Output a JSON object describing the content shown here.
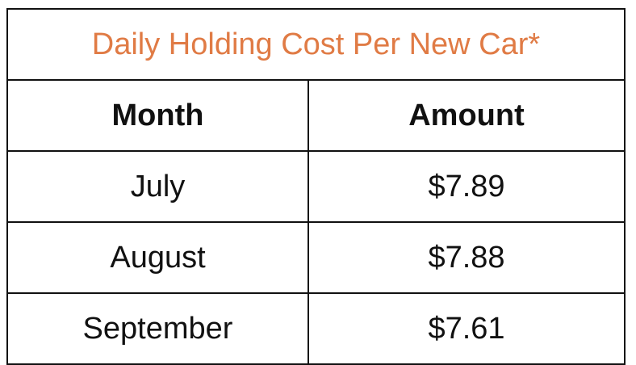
{
  "chart_data": {
    "type": "table",
    "title": "Daily Holding Cost Per New Car*",
    "title_color": "#e07b45",
    "columns": [
      "Month",
      "Amount"
    ],
    "rows": [
      [
        "July",
        "$7.89"
      ],
      [
        "August",
        "$7.88"
      ],
      [
        "September",
        "$7.61"
      ]
    ]
  }
}
